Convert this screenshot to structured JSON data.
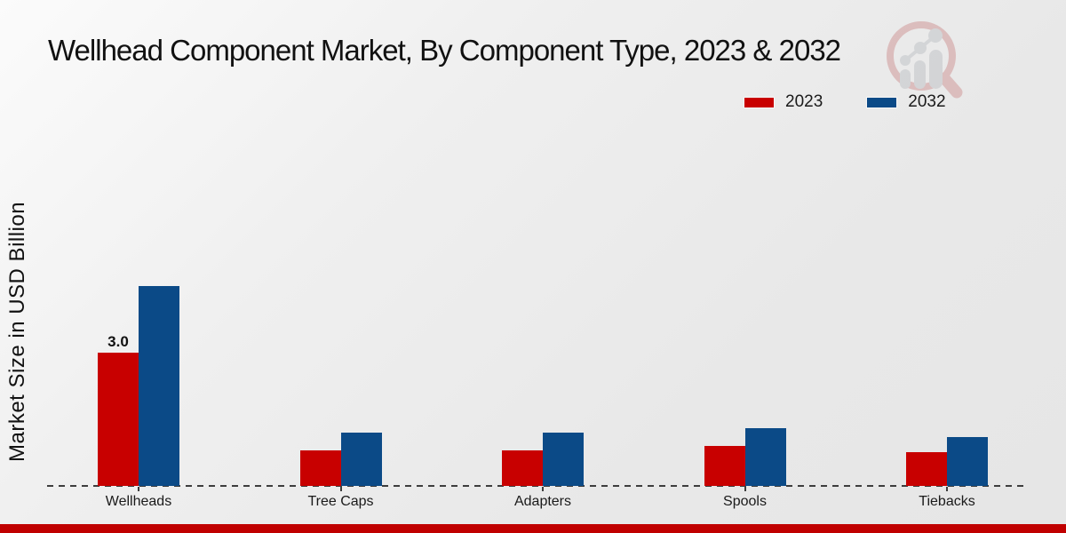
{
  "chart_data": {
    "type": "bar",
    "title": "Wellhead Component Market, By Component Type, 2023 & 2032",
    "ylabel": "Market Size in USD Billion",
    "xlabel": "",
    "categories": [
      "Wellheads",
      "Tree Caps",
      "Adapters",
      "Spools",
      "Tiebacks"
    ],
    "series": [
      {
        "name": "2023",
        "color": "#C80000",
        "values": [
          3.0,
          0.8,
          0.8,
          0.9,
          0.75
        ]
      },
      {
        "name": "2032",
        "color": "#0B4A87",
        "values": [
          4.5,
          1.2,
          1.2,
          1.3,
          1.1
        ]
      }
    ],
    "data_labels": [
      {
        "series": "2023",
        "category": "Wellheads",
        "text": "3.0"
      }
    ],
    "ylim": [
      0,
      5
    ],
    "grid": false,
    "legend_position": "top-right",
    "baseline_style": "dashed"
  },
  "footer": {
    "color": "#C00000"
  },
  "watermark": {
    "icon": "magnifier-growth-chart-logo",
    "ring_color": "#d09a9a",
    "bar_color": "#c2c4c8"
  }
}
